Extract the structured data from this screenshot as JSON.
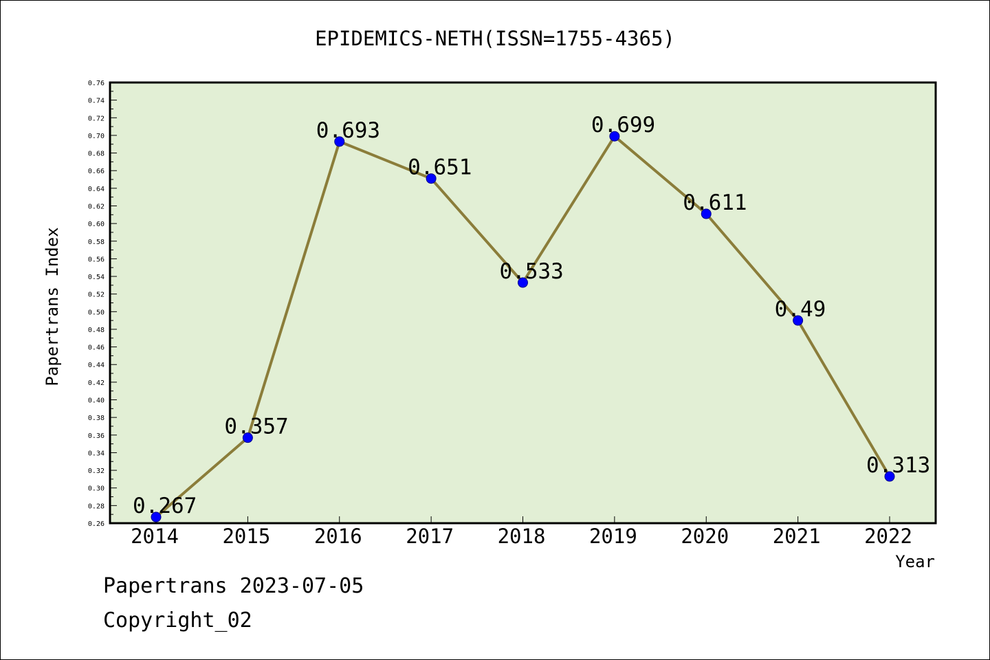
{
  "chart_data": {
    "type": "line",
    "title": "EPIDEMICS-NETH(ISSN=1755-4365)",
    "xlabel": "Year",
    "ylabel": "Papertrans Index",
    "categories": [
      "2014",
      "2015",
      "2016",
      "2017",
      "2018",
      "2019",
      "2020",
      "2021",
      "2022"
    ],
    "series": [
      {
        "values": [
          0.267,
          0.357,
          0.693,
          0.651,
          0.533,
          0.699,
          0.611,
          0.49,
          0.313
        ],
        "labels": [
          "0.267",
          "0.357",
          "0.693",
          "0.651",
          "0.533",
          "0.699",
          "0.611",
          "0.49",
          "0.313"
        ]
      }
    ],
    "ylim": [
      0.26,
      0.76
    ],
    "yticks": [
      "0.26",
      "0.28",
      "0.30",
      "0.32",
      "0.34",
      "0.36",
      "0.38",
      "0.40",
      "0.42",
      "0.44",
      "0.46",
      "0.48",
      "0.50",
      "0.52",
      "0.54",
      "0.56",
      "0.58",
      "0.60",
      "0.62",
      "0.64",
      "0.66",
      "0.68",
      "0.70",
      "0.72",
      "0.74",
      "0.76"
    ],
    "grid": false,
    "legend": "none",
    "colors": {
      "plot_background": "#e2efd5",
      "line": "#8b7d3a",
      "marker": "#0000ff"
    }
  },
  "footer": {
    "date_line": "Papertrans 2023-07-05",
    "copyright": "Copyright_02"
  }
}
